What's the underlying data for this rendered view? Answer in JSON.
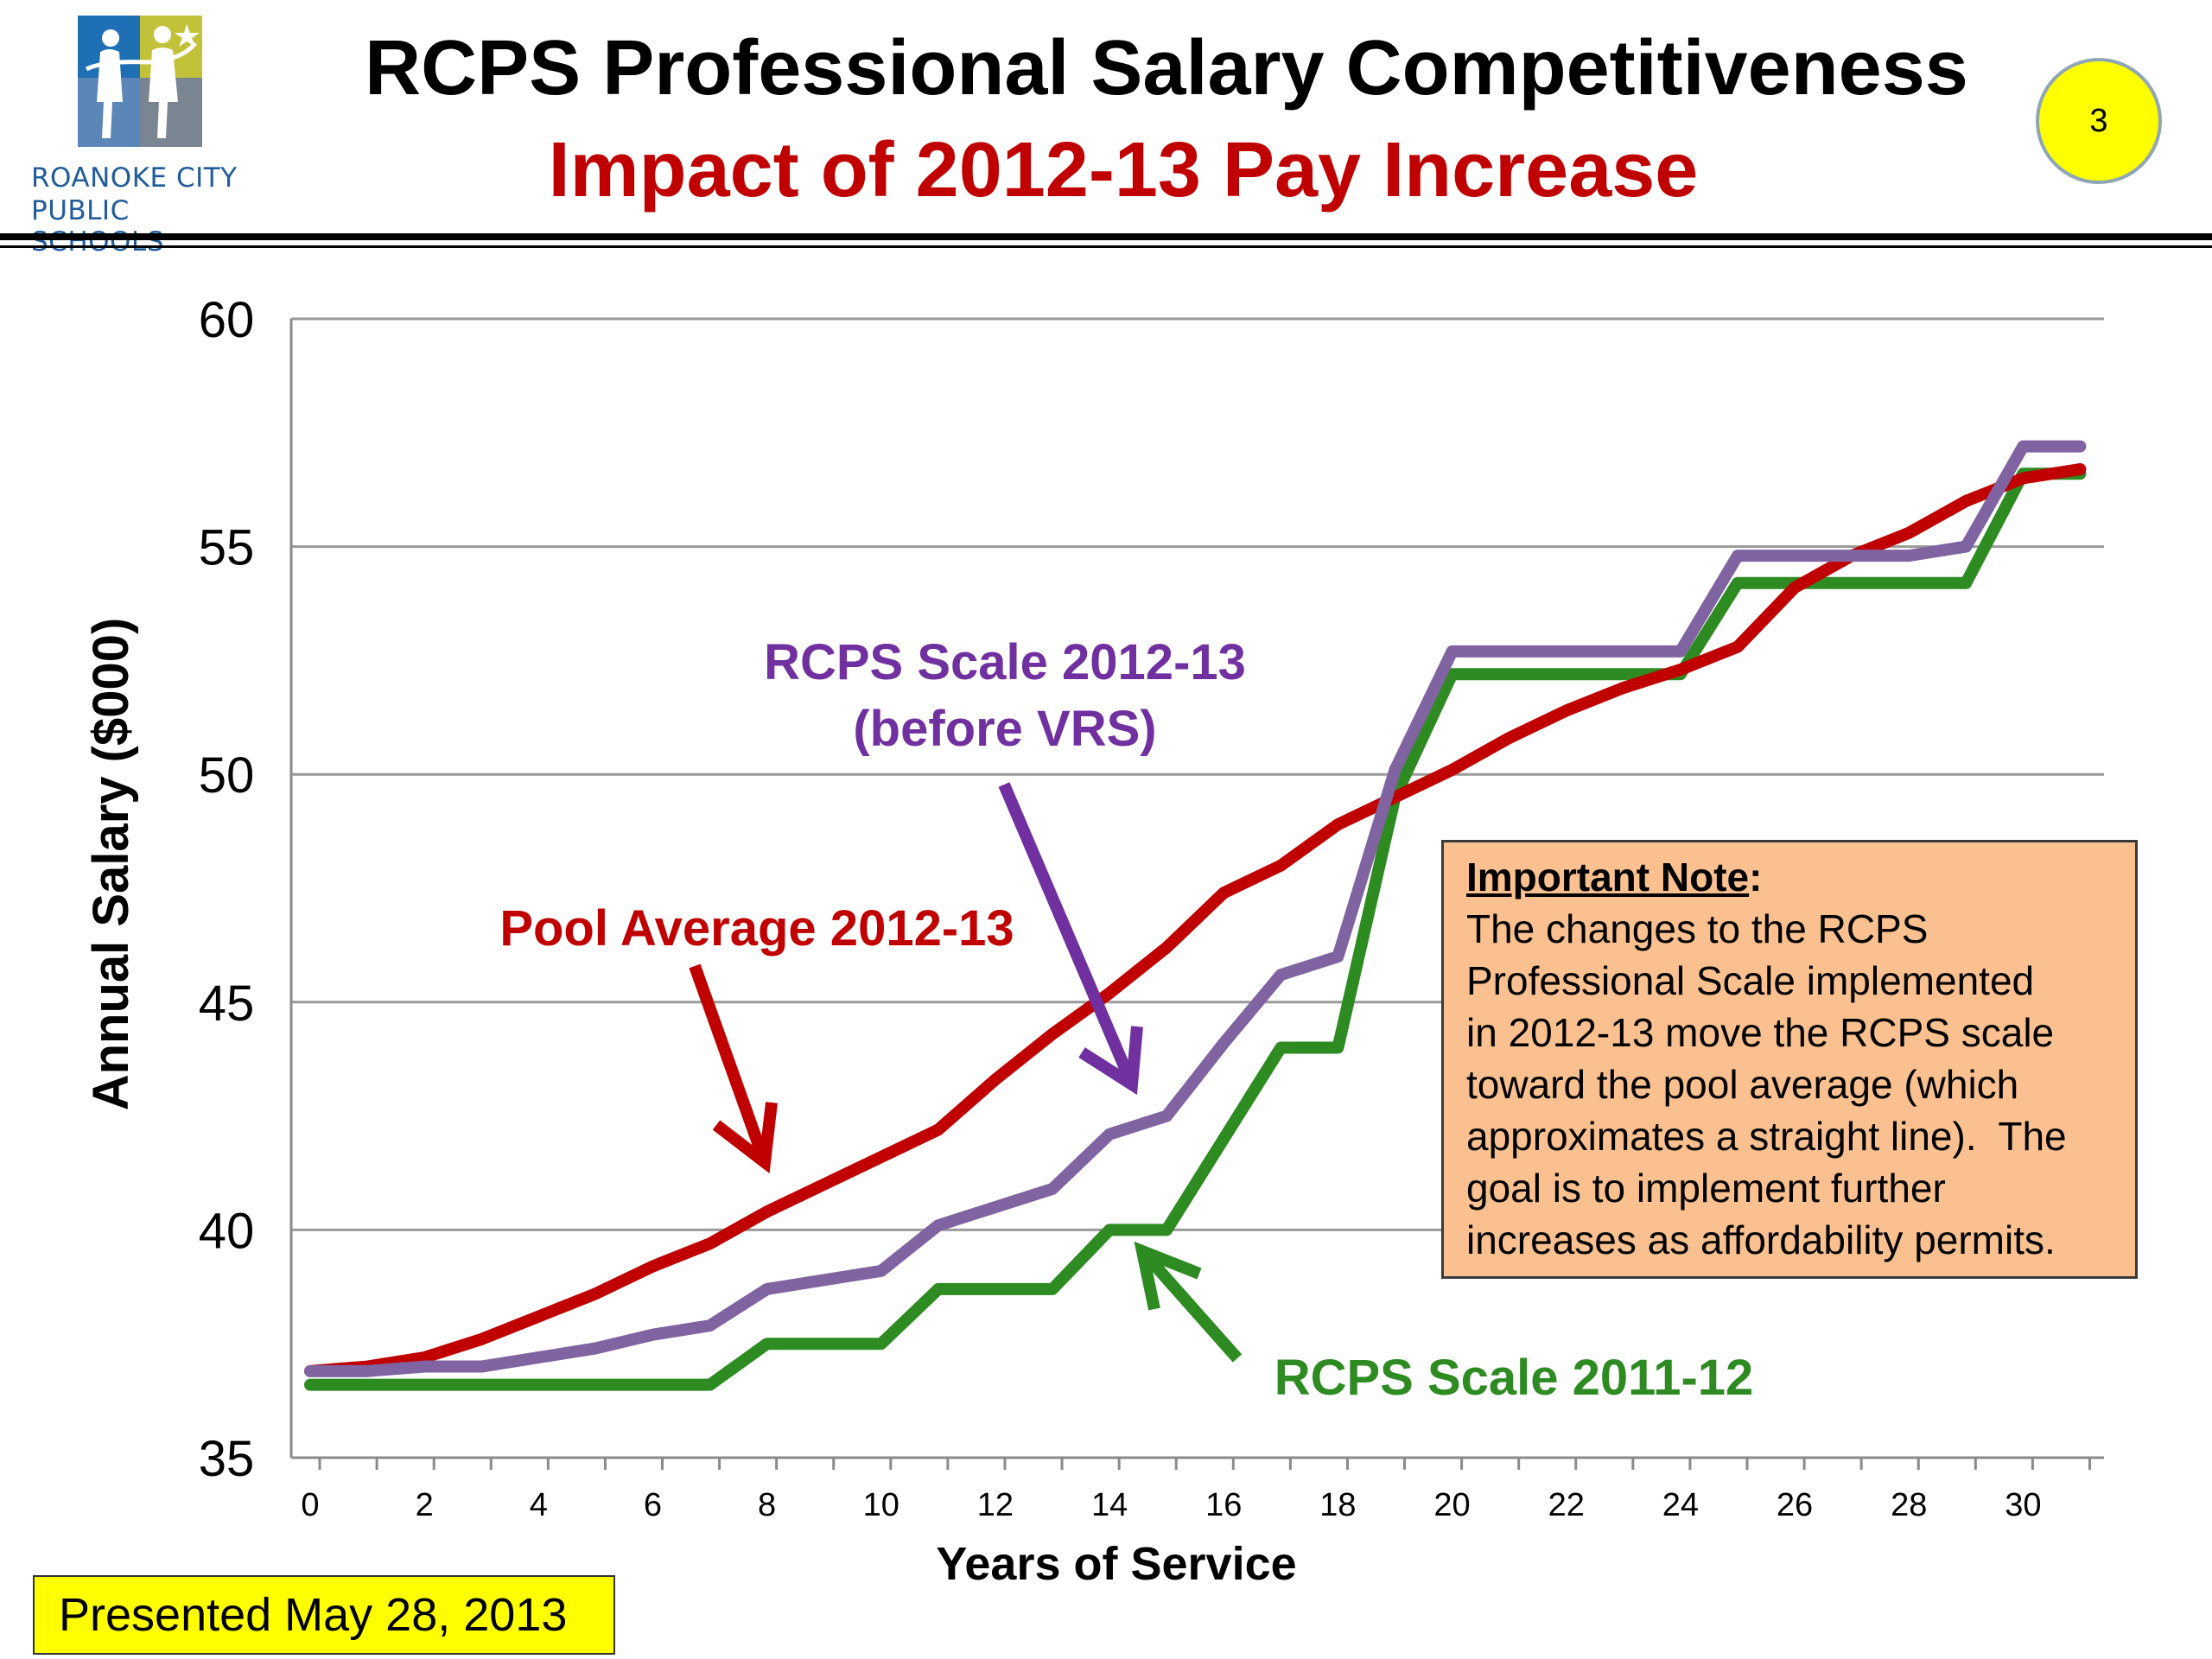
{
  "header": {
    "logo_text_line1": "ROANOKE CITY",
    "logo_text_line2": "PUBLIC SCHOOLS",
    "title": "RCPS Professional Salary Competitiveness",
    "subtitle": "Impact of 2012-13 Pay Increase",
    "page_number": "3",
    "colors": {
      "title": "#000000",
      "subtitle": "#c00000",
      "badge": "#ffff00"
    }
  },
  "chart_data": {
    "type": "line",
    "xlabel": "Years of Service",
    "ylabel": "Annual Salary ($000)",
    "xlim": [
      0,
      31
    ],
    "ylim": [
      35,
      60
    ],
    "x_ticks": [
      0,
      2,
      4,
      6,
      8,
      10,
      12,
      14,
      16,
      18,
      20,
      22,
      24,
      26,
      28,
      30
    ],
    "y_ticks": [
      35,
      40,
      45,
      50,
      55,
      60
    ],
    "grid": true,
    "x": [
      0,
      1,
      2,
      3,
      4,
      5,
      6,
      7,
      8,
      9,
      10,
      11,
      12,
      13,
      14,
      15,
      16,
      17,
      18,
      19,
      20,
      21,
      22,
      23,
      24,
      25,
      26,
      27,
      28,
      29,
      30,
      31
    ],
    "series": [
      {
        "color": "#2e8b22",
        "values": [
          36.6,
          36.6,
          36.6,
          36.6,
          36.6,
          36.6,
          36.6,
          36.6,
          37.5,
          37.5,
          37.5,
          38.7,
          38.7,
          38.7,
          40.0,
          40.0,
          42.0,
          44.0,
          44.0,
          49.5,
          52.2,
          52.2,
          52.2,
          52.2,
          52.2,
          54.2,
          54.2,
          54.2,
          54.2,
          54.2,
          56.6,
          56.6
        ]
      },
      {
        "color": "#c00000",
        "values": [
          36.9,
          37.0,
          37.2,
          37.6,
          38.1,
          38.6,
          39.2,
          39.7,
          40.4,
          41.0,
          41.6,
          42.2,
          43.3,
          44.3,
          45.2,
          46.2,
          47.4,
          48.0,
          48.9,
          49.5,
          50.1,
          50.8,
          51.4,
          51.9,
          52.3,
          52.8,
          54.1,
          54.8,
          55.3,
          56.0,
          56.5,
          56.7
        ]
      },
      {
        "color": "#8064a2",
        "values": [
          36.9,
          36.9,
          37.0,
          37.0,
          37.2,
          37.4,
          37.7,
          37.9,
          38.7,
          38.9,
          39.1,
          40.1,
          40.5,
          40.9,
          42.1,
          42.5,
          44.1,
          45.6,
          46.0,
          50.1,
          52.7,
          52.7,
          52.7,
          52.7,
          52.7,
          54.8,
          54.8,
          54.8,
          54.8,
          55.0,
          57.2,
          57.2
        ]
      }
    ],
    "annotations": [
      {
        "text": "Pool Average 2012-13",
        "color": "#c00000"
      },
      {
        "text_line1": "RCPS Scale 2012-13",
        "text_line2": "(before VRS)",
        "color": "#7030a0"
      },
      {
        "text": "RCPS Scale 2011-12",
        "color": "#2e8b22"
      }
    ]
  },
  "note": {
    "heading": "Important Note",
    "colon": ":",
    "lines": [
      "The changes to the RCPS",
      "Professional Scale implemented",
      "in 2012-13 move the RCPS scale",
      "toward the pool average (which",
      "approximates a straight line).  The",
      "goal is to implement further",
      "increases as affordability permits."
    ],
    "background": "#fac090"
  },
  "footer": {
    "text": "Presented May 28, 2013",
    "background": "#ffff00"
  }
}
